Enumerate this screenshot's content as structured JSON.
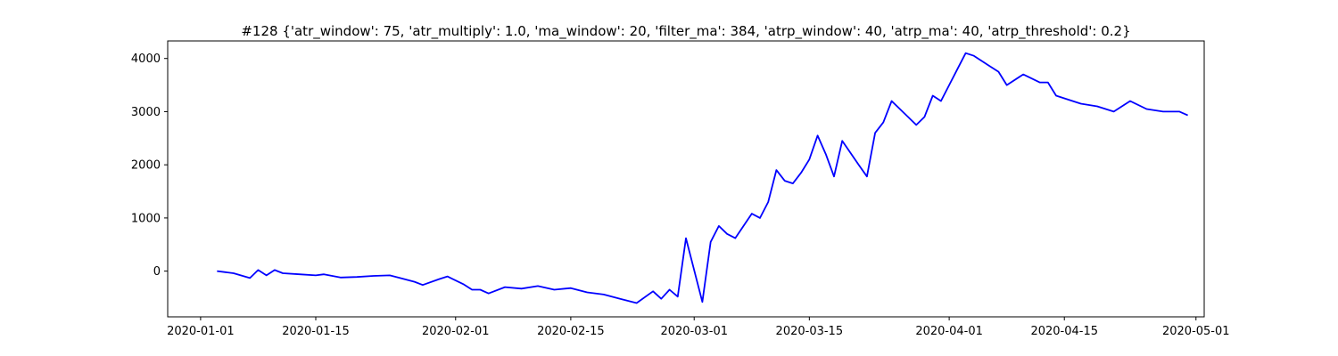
{
  "chart_data": {
    "type": "line",
    "title": "#128 {'atr_window': 75, 'atr_multiply': 1.0, 'ma_window': 20, 'filter_ma': 384, 'atrp_window': 40, 'atrp_ma': 40, 'atrp_threshold': 0.2}",
    "xlabel": "",
    "ylabel": "",
    "grid": false,
    "legend": "none",
    "color": "#0000ff",
    "xlim": [
      "2019-12-28",
      "2020-05-02"
    ],
    "ylim": [
      -860,
      4330
    ],
    "xticks": [
      "2020-01-01",
      "2020-01-15",
      "2020-02-01",
      "2020-02-15",
      "2020-03-01",
      "2020-03-15",
      "2020-04-01",
      "2020-04-15",
      "2020-05-01"
    ],
    "yticks": [
      0,
      1000,
      2000,
      3000,
      4000
    ],
    "series": [
      {
        "x": [
          "2020-01-03",
          "2020-01-04",
          "2020-01-05",
          "2020-01-07",
          "2020-01-08",
          "2020-01-09",
          "2020-01-10",
          "2020-01-11",
          "2020-01-13",
          "2020-01-15",
          "2020-01-16",
          "2020-01-18",
          "2020-01-20",
          "2020-01-22",
          "2020-01-24",
          "2020-01-25",
          "2020-01-27",
          "2020-01-28",
          "2020-01-30",
          "2020-01-31",
          "2020-02-02",
          "2020-02-03",
          "2020-02-04",
          "2020-02-05",
          "2020-02-07",
          "2020-02-09",
          "2020-02-11",
          "2020-02-13",
          "2020-02-15",
          "2020-02-17",
          "2020-02-19",
          "2020-02-21",
          "2020-02-23",
          "2020-02-25",
          "2020-02-26",
          "2020-02-27",
          "2020-02-28",
          "2020-02-29",
          "2020-03-02",
          "2020-03-03",
          "2020-03-04",
          "2020-03-05",
          "2020-03-06",
          "2020-03-08",
          "2020-03-09",
          "2020-03-10",
          "2020-03-11",
          "2020-03-12",
          "2020-03-13",
          "2020-03-14",
          "2020-03-15",
          "2020-03-16",
          "2020-03-17",
          "2020-03-18",
          "2020-03-19",
          "2020-03-21",
          "2020-03-22",
          "2020-03-23",
          "2020-03-24",
          "2020-03-25",
          "2020-03-27",
          "2020-03-28",
          "2020-03-29",
          "2020-03-30",
          "2020-03-31",
          "2020-04-01",
          "2020-04-02",
          "2020-04-03",
          "2020-04-04",
          "2020-04-05",
          "2020-04-06",
          "2020-04-07",
          "2020-04-08",
          "2020-04-10",
          "2020-04-12",
          "2020-04-13",
          "2020-04-14",
          "2020-04-15",
          "2020-04-17",
          "2020-04-19",
          "2020-04-21",
          "2020-04-23",
          "2020-04-25",
          "2020-04-27",
          "2020-04-29",
          "2020-04-30"
        ],
        "values": [
          0,
          -20,
          -40,
          -130,
          20,
          -80,
          20,
          -40,
          -60,
          -80,
          -60,
          -120,
          -110,
          -90,
          -80,
          -120,
          -200,
          -260,
          -150,
          -100,
          -250,
          -350,
          -350,
          -420,
          -300,
          -330,
          -280,
          -350,
          -320,
          -400,
          -440,
          -520,
          -600,
          -380,
          -520,
          -350,
          -480,
          620,
          -580,
          550,
          850,
          700,
          620,
          1080,
          1000,
          1300,
          1900,
          1700,
          1650,
          1850,
          2100,
          2550,
          2200,
          1780,
          2450,
          2000,
          1780,
          2600,
          2800,
          3200,
          2900,
          2750,
          2900,
          3300,
          3200,
          3500,
          3800,
          4100,
          4050,
          3950,
          3850,
          3750,
          3500,
          3700,
          3550,
          3550,
          3300,
          3250,
          3150,
          3100,
          3000,
          3200,
          3050,
          3000,
          3000,
          2930
        ]
      }
    ]
  }
}
